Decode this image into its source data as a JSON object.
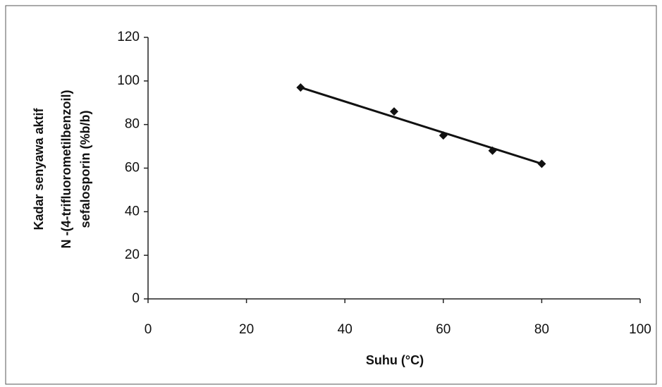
{
  "chart_data": {
    "type": "scatter",
    "x_label": "Suhu (°C)",
    "y_label": [
      "Kadar senyawa aktif",
      "N -(4-trifluorometilbenzoil)",
      "sefalosporin (%b/b)"
    ],
    "series": [
      {
        "x": [
          31,
          50,
          60,
          70,
          80
        ],
        "values": [
          97,
          86,
          75,
          68,
          62
        ],
        "color": "#111111"
      }
    ],
    "trendline": {
      "x": [
        31,
        80
      ],
      "y": [
        97,
        62
      ],
      "color": "#111111"
    },
    "xlim": [
      0,
      100
    ],
    "xticks": [
      0,
      20,
      40,
      60,
      80,
      100
    ],
    "ylim": [
      0,
      120
    ],
    "yticks": [
      0,
      20,
      40,
      60,
      80,
      100,
      120
    ]
  }
}
